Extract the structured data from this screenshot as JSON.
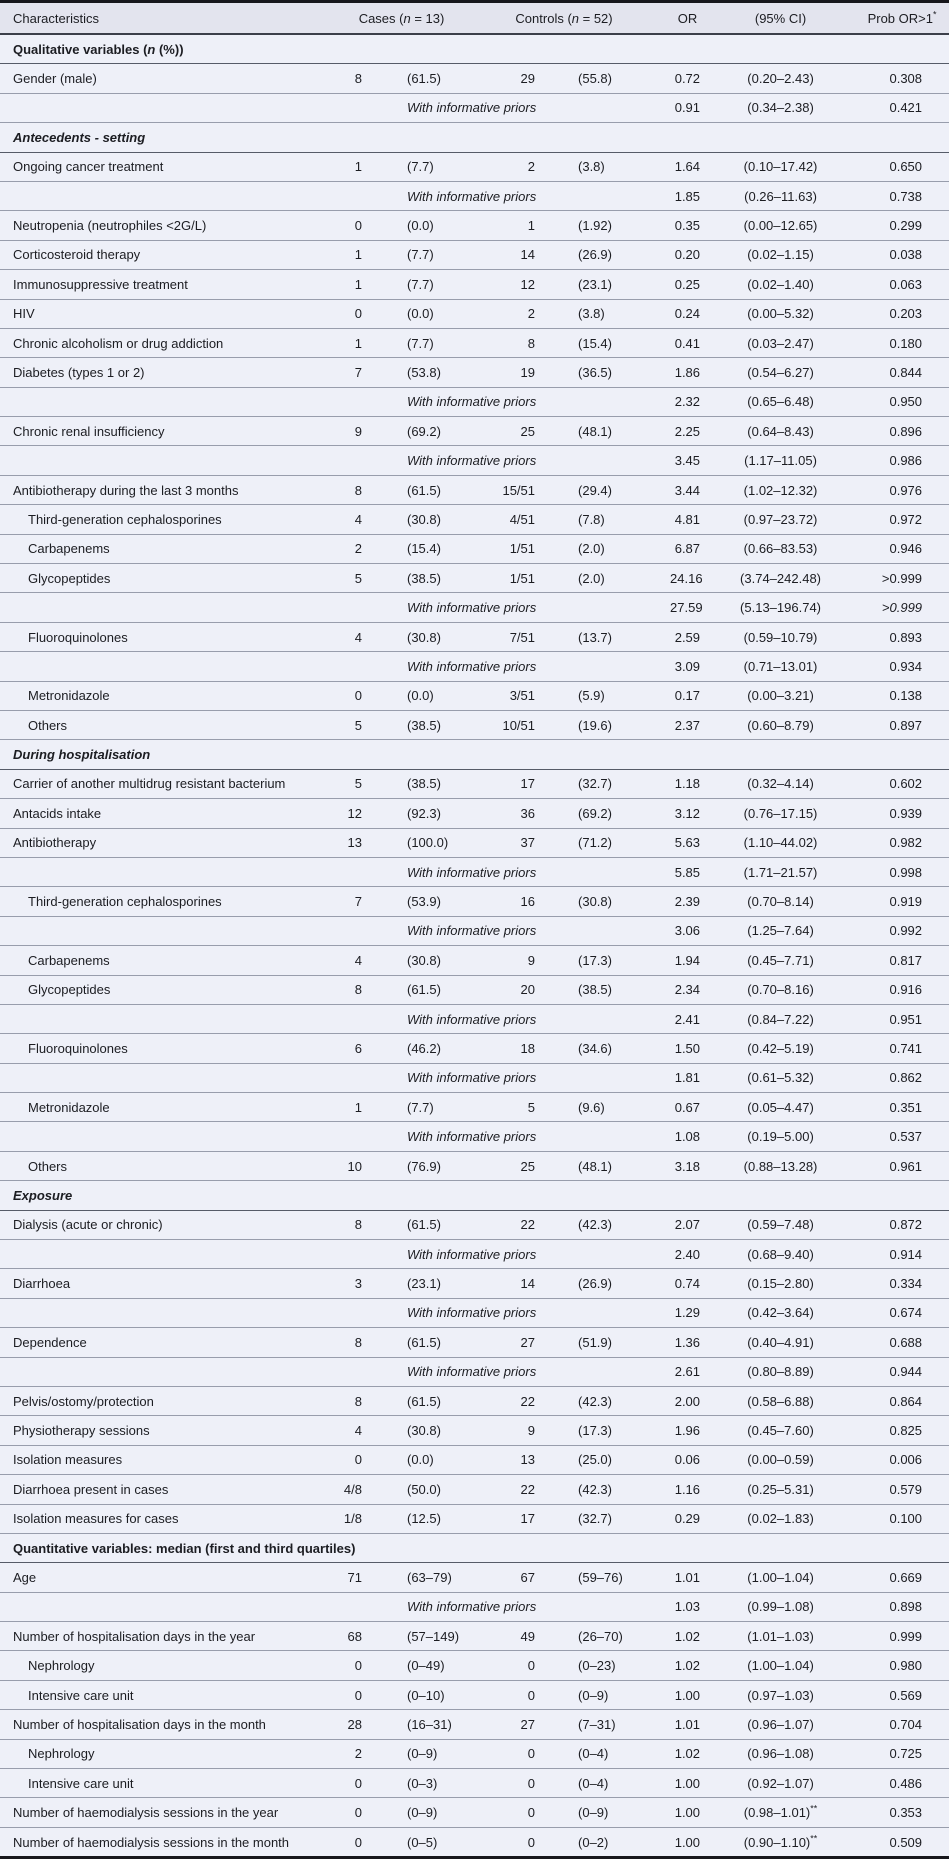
{
  "colors": {
    "row_background": "#eef0f8",
    "header_background": "#e3e4ee",
    "text": "#1c1d22",
    "row_line": "#989dac",
    "section_line": "#565b68",
    "outer_border": "#17171c"
  },
  "table": {
    "header": {
      "characteristics": "Characteristics",
      "cases_html": "Cases (<i>n</i> = 13)",
      "controls_html": "Controls (<i>n</i> = 52)",
      "or": "OR",
      "ci": "(95% CI)",
      "prob_html": "Prob OR>1<sup>*</sup>"
    },
    "wip_label": "With informative priors",
    "rows": [
      {
        "type": "section",
        "label": "Qualitative variables (n (%))",
        "html": "Qualitative variables (<i>n</i> (%))",
        "italic": false
      },
      {
        "type": "data",
        "label": "Gender (male)",
        "indent": 0,
        "cases_n": "8",
        "cases_pct": "(61.5)",
        "controls_n": "29",
        "controls_pct": "(55.8)",
        "or": "0.72",
        "ci": "(0.20–2.43)",
        "prob": "0.308"
      },
      {
        "type": "wip",
        "or": "0.91",
        "ci": "(0.34–2.38)",
        "prob": "0.421"
      },
      {
        "type": "section",
        "label": "Antecedents - setting",
        "italic": true
      },
      {
        "type": "data",
        "label": "Ongoing cancer treatment",
        "indent": 0,
        "cases_n": "1",
        "cases_pct": "(7.7)",
        "controls_n": "2",
        "controls_pct": "(3.8)",
        "or": "1.64",
        "ci": "(0.10–17.42)",
        "prob": "0.650"
      },
      {
        "type": "wip",
        "or": "1.85",
        "ci": "(0.26–11.63)",
        "prob": "0.738"
      },
      {
        "type": "data",
        "label": "Neutropenia (neutrophiles <2G/L)",
        "indent": 0,
        "cases_n": "0",
        "cases_pct": "(0.0)",
        "controls_n": "1",
        "controls_pct": "(1.92)",
        "or": "0.35",
        "ci": "(0.00–12.65)",
        "prob": "0.299"
      },
      {
        "type": "data",
        "label": "Corticosteroid therapy",
        "indent": 0,
        "cases_n": "1",
        "cases_pct": "(7.7)",
        "controls_n": "14",
        "controls_pct": "(26.9)",
        "or": "0.20",
        "ci": "(0.02–1.15)",
        "prob": "0.038"
      },
      {
        "type": "data",
        "label": "Immunosuppressive treatment",
        "indent": 0,
        "cases_n": "1",
        "cases_pct": "(7.7)",
        "controls_n": "12",
        "controls_pct": "(23.1)",
        "or": "0.25",
        "ci": "(0.02–1.40)",
        "prob": "0.063"
      },
      {
        "type": "data",
        "label": "HIV",
        "indent": 0,
        "cases_n": "0",
        "cases_pct": "(0.0)",
        "controls_n": "2",
        "controls_pct": "(3.8)",
        "or": "0.24",
        "ci": "(0.00–5.32)",
        "prob": "0.203"
      },
      {
        "type": "data",
        "label": "Chronic alcoholism or drug addiction",
        "indent": 0,
        "cases_n": "1",
        "cases_pct": "(7.7)",
        "controls_n": "8",
        "controls_pct": "(15.4)",
        "or": "0.41",
        "ci": "(0.03–2.47)",
        "prob": "0.180"
      },
      {
        "type": "data",
        "label": "Diabetes (types 1 or 2)",
        "indent": 0,
        "cases_n": "7",
        "cases_pct": "(53.8)",
        "controls_n": "19",
        "controls_pct": "(36.5)",
        "or": "1.86",
        "ci": "(0.54–6.27)",
        "prob": "0.844"
      },
      {
        "type": "wip",
        "or": "2.32",
        "ci": "(0.65–6.48)",
        "prob": "0.950"
      },
      {
        "type": "data",
        "label": "Chronic renal insufficiency",
        "indent": 0,
        "cases_n": "9",
        "cases_pct": "(69.2)",
        "controls_n": "25",
        "controls_pct": "(48.1)",
        "or": "2.25",
        "ci": "(0.64–8.43)",
        "prob": "0.896"
      },
      {
        "type": "wip",
        "or": "3.45",
        "ci": "(1.17–11.05)",
        "prob": "0.986"
      },
      {
        "type": "data",
        "label": "Antibiotherapy during the last 3 months",
        "indent": 0,
        "cases_n": "8",
        "cases_pct": "(61.5)",
        "controls_n": "15/51",
        "controls_pct": "(29.4)",
        "or": "3.44",
        "ci": "(1.02–12.32)",
        "prob": "0.976"
      },
      {
        "type": "data",
        "label": "Third-generation cephalosporines",
        "indent": 1,
        "cases_n": "4",
        "cases_pct": "(30.8)",
        "controls_n": "4/51",
        "controls_pct": "(7.8)",
        "or": "4.81",
        "ci": "(0.97–23.72)",
        "prob": "0.972"
      },
      {
        "type": "data",
        "label": "Carbapenems",
        "indent": 1,
        "cases_n": "2",
        "cases_pct": "(15.4)",
        "controls_n": "1/51",
        "controls_pct": "(2.0)",
        "or": "6.87",
        "ci": "(0.66–83.53)",
        "prob": "0.946"
      },
      {
        "type": "data",
        "label": "Glycopeptides",
        "indent": 1,
        "cases_n": "5",
        "cases_pct": "(38.5)",
        "controls_n": "1/51",
        "controls_pct": "(2.0)",
        "or": "24.16",
        "ci": "(3.74–242.48)",
        "prob": ">0.999"
      },
      {
        "type": "wip",
        "or": "27.59",
        "ci": "(5.13–196.74)",
        "prob": ">0.999",
        "prob_italic": true
      },
      {
        "type": "data",
        "label": "Fluoroquinolones",
        "indent": 1,
        "cases_n": "4",
        "cases_pct": "(30.8)",
        "controls_n": "7/51",
        "controls_pct": "(13.7)",
        "or": "2.59",
        "ci": "(0.59–10.79)",
        "prob": "0.893"
      },
      {
        "type": "wip",
        "or": "3.09",
        "ci": "(0.71–13.01)",
        "prob": "0.934"
      },
      {
        "type": "data",
        "label": "Metronidazole",
        "indent": 1,
        "cases_n": "0",
        "cases_pct": "(0.0)",
        "controls_n": "3/51",
        "controls_pct": "(5.9)",
        "or": "0.17",
        "ci": "(0.00–3.21)",
        "prob": "0.138"
      },
      {
        "type": "data",
        "label": "Others",
        "indent": 1,
        "cases_n": "5",
        "cases_pct": "(38.5)",
        "controls_n": "10/51",
        "controls_pct": "(19.6)",
        "or": "2.37",
        "ci": "(0.60–8.79)",
        "prob": "0.897"
      },
      {
        "type": "section",
        "label": "During hospitalisation",
        "italic": true
      },
      {
        "type": "data",
        "label": "Carrier of another multidrug resistant bacterium",
        "indent": 0,
        "cases_n": "5",
        "cases_pct": "(38.5)",
        "controls_n": "17",
        "controls_pct": "(32.7)",
        "or": "1.18",
        "ci": "(0.32–4.14)",
        "prob": "0.602"
      },
      {
        "type": "data",
        "label": "Antacids intake",
        "indent": 0,
        "cases_n": "12",
        "cases_pct": "(92.3)",
        "controls_n": "36",
        "controls_pct": "(69.2)",
        "or": "3.12",
        "ci": "(0.76–17.15)",
        "prob": "0.939"
      },
      {
        "type": "data",
        "label": "Antibiotherapy",
        "indent": 0,
        "cases_n": "13",
        "cases_pct": "(100.0)",
        "controls_n": "37",
        "controls_pct": "(71.2)",
        "or": "5.63",
        "ci": "(1.10–44.02)",
        "prob": "0.982"
      },
      {
        "type": "wip",
        "or": "5.85",
        "ci": "(1.71–21.57)",
        "prob": "0.998"
      },
      {
        "type": "data",
        "label": "Third-generation cephalosporines",
        "indent": 1,
        "cases_n": "7",
        "cases_pct": "(53.9)",
        "controls_n": "16",
        "controls_pct": "(30.8)",
        "or": "2.39",
        "ci": "(0.70–8.14)",
        "prob": "0.919"
      },
      {
        "type": "wip",
        "or": "3.06",
        "ci": "(1.25–7.64)",
        "prob": "0.992"
      },
      {
        "type": "data",
        "label": "Carbapenems",
        "indent": 1,
        "cases_n": "4",
        "cases_pct": "(30.8)",
        "controls_n": "9",
        "controls_pct": "(17.3)",
        "or": "1.94",
        "ci": "(0.45–7.71)",
        "prob": "0.817"
      },
      {
        "type": "data",
        "label": "Glycopeptides",
        "indent": 1,
        "cases_n": "8",
        "cases_pct": "(61.5)",
        "controls_n": "20",
        "controls_pct": "(38.5)",
        "or": "2.34",
        "ci": "(0.70–8.16)",
        "prob": "0.916"
      },
      {
        "type": "wip",
        "or": "2.41",
        "ci": "(0.84–7.22)",
        "prob": "0.951"
      },
      {
        "type": "data",
        "label": "Fluoroquinolones",
        "indent": 1,
        "cases_n": "6",
        "cases_pct": "(46.2)",
        "controls_n": "18",
        "controls_pct": "(34.6)",
        "or": "1.50",
        "ci": "(0.42–5.19)",
        "prob": "0.741"
      },
      {
        "type": "wip",
        "or": "1.81",
        "ci": "(0.61–5.32)",
        "prob": "0.862"
      },
      {
        "type": "data",
        "label": "Metronidazole",
        "indent": 1,
        "cases_n": "1",
        "cases_pct": "(7.7)",
        "controls_n": "5",
        "controls_pct": "(9.6)",
        "or": "0.67",
        "ci": "(0.05–4.47)",
        "prob": "0.351"
      },
      {
        "type": "wip",
        "or": "1.08",
        "ci": "(0.19–5.00)",
        "prob": "0.537"
      },
      {
        "type": "data",
        "label": "Others",
        "indent": 1,
        "cases_n": "10",
        "cases_pct": "(76.9)",
        "controls_n": "25",
        "controls_pct": "(48.1)",
        "or": "3.18",
        "ci": "(0.88–13.28)",
        "prob": "0.961"
      },
      {
        "type": "section",
        "label": "Exposure",
        "italic": true
      },
      {
        "type": "data",
        "label": "Dialysis (acute or chronic)",
        "indent": 0,
        "cases_n": "8",
        "cases_pct": "(61.5)",
        "controls_n": "22",
        "controls_pct": "(42.3)",
        "or": "2.07",
        "ci": "(0.59–7.48)",
        "prob": "0.872"
      },
      {
        "type": "wip",
        "or": "2.40",
        "ci": "(0.68–9.40)",
        "prob": "0.914"
      },
      {
        "type": "data",
        "label": "Diarrhoea",
        "indent": 0,
        "cases_n": "3",
        "cases_pct": "(23.1)",
        "controls_n": "14",
        "controls_pct": "(26.9)",
        "or": "0.74",
        "ci": "(0.15–2.80)",
        "prob": "0.334"
      },
      {
        "type": "wip",
        "or": "1.29",
        "ci": "(0.42–3.64)",
        "prob": "0.674"
      },
      {
        "type": "data",
        "label": "Dependence",
        "indent": 0,
        "cases_n": "8",
        "cases_pct": "(61.5)",
        "controls_n": "27",
        "controls_pct": "(51.9)",
        "or": "1.36",
        "ci": "(0.40–4.91)",
        "prob": "0.688"
      },
      {
        "type": "wip",
        "or": "2.61",
        "ci": "(0.80–8.89)",
        "prob": "0.944"
      },
      {
        "type": "data",
        "label": "Pelvis/ostomy/protection",
        "indent": 0,
        "cases_n": "8",
        "cases_pct": "(61.5)",
        "controls_n": "22",
        "controls_pct": "(42.3)",
        "or": "2.00",
        "ci": "(0.58–6.88)",
        "prob": "0.864"
      },
      {
        "type": "data",
        "label": "Physiotherapy sessions",
        "indent": 0,
        "cases_n": "4",
        "cases_pct": "(30.8)",
        "controls_n": "9",
        "controls_pct": "(17.3)",
        "or": "1.96",
        "ci": "(0.45–7.60)",
        "prob": "0.825"
      },
      {
        "type": "data",
        "label": "Isolation measures",
        "indent": 0,
        "cases_n": "0",
        "cases_pct": "(0.0)",
        "controls_n": "13",
        "controls_pct": "(25.0)",
        "or": "0.06",
        "ci": "(0.00–0.59)",
        "prob": "0.006"
      },
      {
        "type": "data",
        "label": "Diarrhoea present in cases",
        "indent": 0,
        "cases_n": "4/8",
        "cases_pct": "(50.0)",
        "controls_n": "22",
        "controls_pct": "(42.3)",
        "or": "1.16",
        "ci": "(0.25–5.31)",
        "prob": "0.579"
      },
      {
        "type": "data",
        "label": "Isolation measures for cases",
        "indent": 0,
        "cases_n": "1/8",
        "cases_pct": "(12.5)",
        "controls_n": "17",
        "controls_pct": "(32.7)",
        "or": "0.29",
        "ci": "(0.02–1.83)",
        "prob": "0.100"
      },
      {
        "type": "section",
        "label": "Quantitative variables: median (first and third quartiles)",
        "italic": false
      },
      {
        "type": "data",
        "label": "Age",
        "indent": 0,
        "cases_n": "71",
        "cases_pct": "(63–79)",
        "controls_n": "67",
        "controls_pct": "(59–76)",
        "or": "1.01",
        "ci": "(1.00–1.04)",
        "prob": "0.669"
      },
      {
        "type": "wip",
        "or": "1.03",
        "ci": "(0.99–1.08)",
        "prob": "0.898"
      },
      {
        "type": "data",
        "label": "Number of hospitalisation days in the year",
        "indent": 0,
        "cases_n": "68",
        "cases_pct": "(57–149)",
        "controls_n": "49",
        "controls_pct": "(26–70)",
        "or": "1.02",
        "ci": "(1.01–1.03)",
        "prob": "0.999"
      },
      {
        "type": "data",
        "label": "Nephrology",
        "indent": 1,
        "cases_n": "0",
        "cases_pct": "(0–49)",
        "controls_n": "0",
        "controls_pct": "(0–23)",
        "or": "1.02",
        "ci": "(1.00–1.04)",
        "prob": "0.980"
      },
      {
        "type": "data",
        "label": "Intensive care unit",
        "indent": 1,
        "cases_n": "0",
        "cases_pct": "(0–10)",
        "controls_n": "0",
        "controls_pct": "(0–9)",
        "or": "1.00",
        "ci": "(0.97–1.03)",
        "prob": "0.569"
      },
      {
        "type": "data",
        "label": "Number of hospitalisation days in the month",
        "indent": 0,
        "cases_n": "28",
        "cases_pct": "(16–31)",
        "controls_n": "27",
        "controls_pct": "(7–31)",
        "or": "1.01",
        "ci": "(0.96–1.07)",
        "prob": "0.704"
      },
      {
        "type": "data",
        "label": "Nephrology",
        "indent": 1,
        "cases_n": "2",
        "cases_pct": "(0–9)",
        "controls_n": "0",
        "controls_pct": "(0–4)",
        "or": "1.02",
        "ci": "(0.96–1.08)",
        "prob": "0.725"
      },
      {
        "type": "data",
        "label": "Intensive care unit",
        "indent": 1,
        "cases_n": "0",
        "cases_pct": "(0–3)",
        "controls_n": "0",
        "controls_pct": "(0–4)",
        "or": "1.00",
        "ci": "(0.92–1.07)",
        "prob": "0.486"
      },
      {
        "type": "data",
        "label": "Number of haemodialysis sessions in the year",
        "indent": 0,
        "cases_n": "0",
        "cases_pct": "(0–9)",
        "controls_n": "0",
        "controls_pct": "(0–9)",
        "or": "1.00",
        "ci": "(0.98–1.01)",
        "ci_sup": "**",
        "prob": "0.353"
      },
      {
        "type": "data",
        "label": "Number of haemodialysis sessions in the month",
        "indent": 0,
        "cases_n": "0",
        "cases_pct": "(0–5)",
        "controls_n": "0",
        "controls_pct": "(0–2)",
        "or": "1.00",
        "ci": "(0.90–1.10)",
        "ci_sup": "**",
        "prob": "0.509"
      }
    ]
  }
}
